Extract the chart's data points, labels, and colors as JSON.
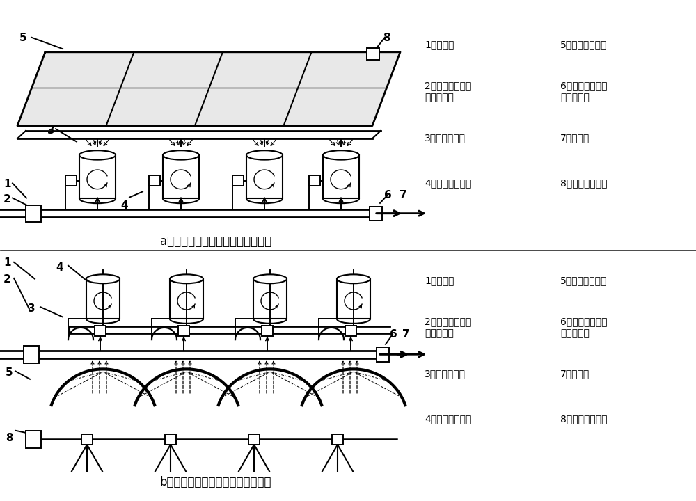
{
  "title_a": "a：直射聚光型光热转化装置示意图",
  "title_b": "b：反射聚光型光热转化装置示意图",
  "leg_a_L1": "1：进水管",
  "leg_a_R1": "5：直射型聚光器",
  "leg_a_L2": "2：水压、流量、\n温度监测器",
  "leg_a_R2": "6：气压、温度、\n流量监测器",
  "leg_a_L3": "3：液面控制器",
  "leg_a_R3": "7：蒸气管",
  "leg_a_L4": "4：光热转化容器",
  "leg_a_R4": "8：太阳光追踪器",
  "leg_b_L1": "1：进水管",
  "leg_b_R1": "5：反射型聚光器",
  "leg_b_L2": "2：水压、流量、\n温度监测器",
  "leg_b_R2": "6：气压、温度、\n流量监测器",
  "leg_b_L3": "3：液面控制器",
  "leg_b_R3": "7：蒸气管",
  "leg_b_L4": "4：光热转化容器",
  "leg_b_R4": "8：太阳光追踪器",
  "bg": "#ffffff"
}
